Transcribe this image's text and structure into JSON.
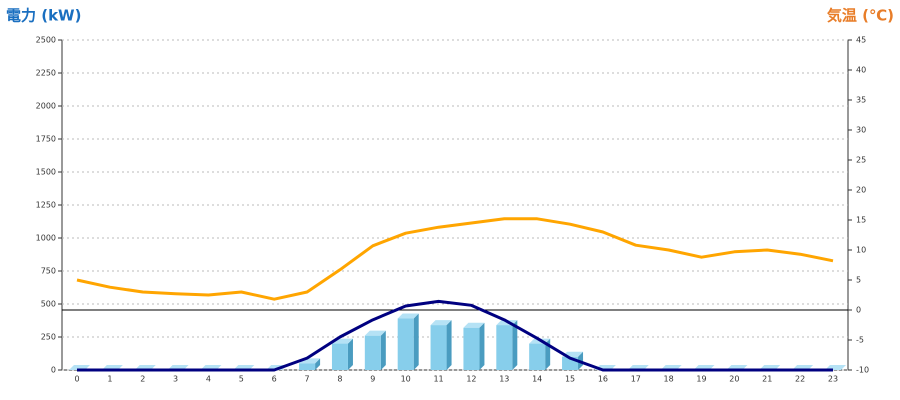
{
  "chart_data": {
    "type": "combo",
    "y_title": "電力 (kW)",
    "y2_title": "気温 (℃)",
    "categories": [
      "0",
      "1",
      "2",
      "3",
      "4",
      "5",
      "6",
      "7",
      "8",
      "9",
      "10",
      "11",
      "12",
      "13",
      "14",
      "15",
      "16",
      "17",
      "18",
      "19",
      "20",
      "21",
      "22",
      "23"
    ],
    "series": [
      {
        "type": "bar",
        "color": "#87ceeb",
        "values": [
          0,
          0,
          0,
          0,
          0,
          0,
          0,
          50,
          200,
          260,
          390,
          340,
          320,
          340,
          200,
          100,
          0,
          0,
          0,
          0,
          0,
          0,
          0,
          0
        ]
      },
      {
        "type": "line",
        "color": "#000080",
        "values": [
          0,
          0,
          0,
          0,
          0,
          0,
          0,
          90,
          250,
          380,
          485,
          520,
          490,
          380,
          240,
          90,
          0,
          0,
          0,
          0,
          0,
          0,
          0,
          0
        ]
      },
      {
        "type": "line",
        "color": "#ffa500",
        "axis": "y2",
        "values": [
          5,
          3.8,
          3,
          2.7,
          2.5,
          3,
          1.8,
          3,
          6.7,
          10.7,
          12.8,
          13.8,
          14.5,
          15.2,
          15.2,
          14.3,
          13,
          10.8,
          10,
          8.8,
          9.7,
          10,
          9.3,
          8.2
        ]
      }
    ],
    "ylim": [
      0,
      2500
    ],
    "yticks": [
      0,
      250,
      500,
      750,
      1000,
      1250,
      1500,
      1750,
      2000,
      2250,
      2500
    ],
    "y2lim": [
      -10,
      45
    ],
    "y2ticks": [
      -10,
      -5,
      0,
      5,
      10,
      15,
      20,
      25,
      30,
      35,
      40,
      45
    ],
    "grid": true
  }
}
